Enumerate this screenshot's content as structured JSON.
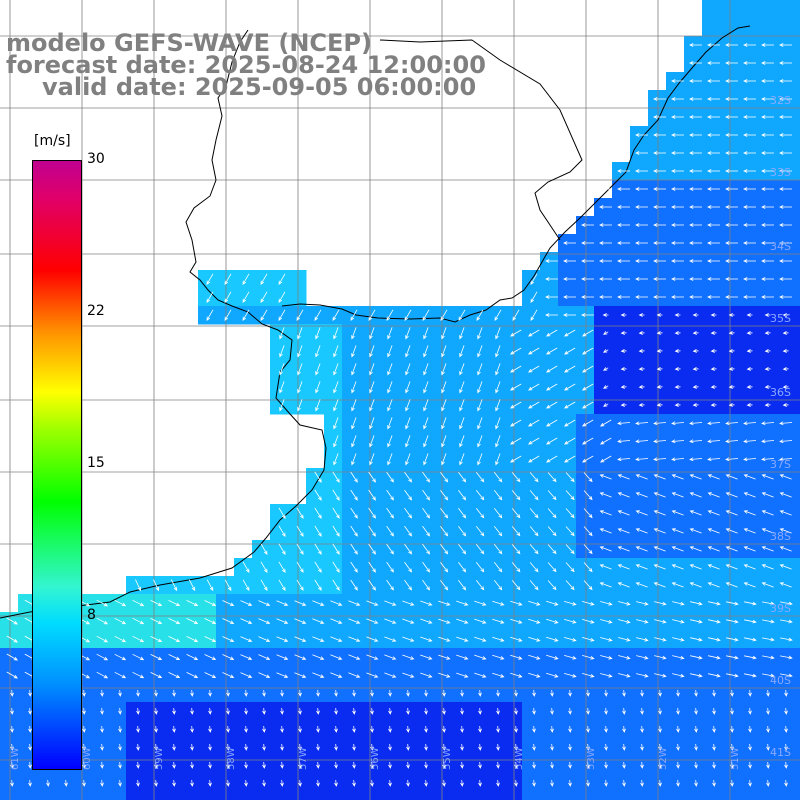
{
  "header": {
    "model_line": "modelo GEFS-WAVE (NCEP)",
    "forecast_line": "forecast date: 2025-08-24 12:00:00",
    "valid_line": "valid date: 2025-09-05 06:00:00"
  },
  "colorbar": {
    "unit": "[m/s]",
    "ticks": [
      "30",
      "22",
      "15",
      "8"
    ],
    "colors": [
      "#0000ff",
      "#0090ff",
      "#00dcff",
      "#00ff00",
      "#ffff00",
      "#ff9000",
      "#ff0000",
      "#c00090"
    ]
  },
  "lat_labels": [
    "32S",
    "33S",
    "34S",
    "35S",
    "36S",
    "37S",
    "38S",
    "39S",
    "40S",
    "41S"
  ],
  "lon_labels": [
    "61W",
    "60W",
    "59W",
    "58W",
    "57W",
    "56W",
    "55W",
    "54W",
    "53W",
    "52W",
    "51W"
  ],
  "field_colors": {
    "land": "#ffffff",
    "deep": "#0a2cf0",
    "mid": "#1070ff",
    "shallow": "#10a8ff",
    "light": "#18c8ff",
    "highlight": "#28e0e8",
    "grid": "#808080",
    "coast": "#000000",
    "arrow": "#ffffff"
  }
}
